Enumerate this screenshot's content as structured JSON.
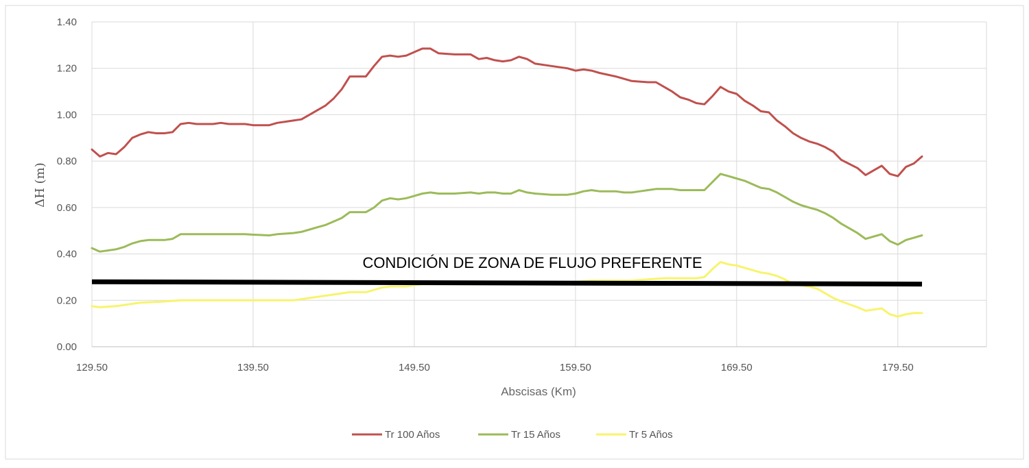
{
  "chart_data": {
    "type": "line",
    "title": "",
    "xlabel": "Abscisas (Km)",
    "ylabel": "ΔH (m)",
    "xlim": [
      129.5,
      185.0
    ],
    "ylim": [
      0.0,
      1.4
    ],
    "grid": true,
    "legend_position": "bottom",
    "x_ticks": [
      {
        "value": 129.5,
        "label": "129.50"
      },
      {
        "value": 139.5,
        "label": "139.50"
      },
      {
        "value": 149.5,
        "label": "149.50"
      },
      {
        "value": 159.5,
        "label": "159.50"
      },
      {
        "value": 169.5,
        "label": "169.50"
      },
      {
        "value": 179.5,
        "label": "179.50"
      }
    ],
    "y_ticks": [
      {
        "value": 0.0,
        "label": "0.00"
      },
      {
        "value": 0.2,
        "label": "0.20"
      },
      {
        "value": 0.4,
        "label": "0.40"
      },
      {
        "value": 0.6,
        "label": "0.60"
      },
      {
        "value": 0.8,
        "label": "0.80"
      },
      {
        "value": 1.0,
        "label": "1.00"
      },
      {
        "value": 1.2,
        "label": "1.20"
      },
      {
        "value": 1.4,
        "label": "1.40"
      }
    ],
    "series": [
      {
        "name": "Tr 100 Años",
        "color": "#c0504d",
        "points": [
          [
            129.5,
            0.85
          ],
          [
            130.0,
            0.82
          ],
          [
            130.5,
            0.835
          ],
          [
            131.0,
            0.83
          ],
          [
            131.5,
            0.86
          ],
          [
            132.0,
            0.9
          ],
          [
            132.5,
            0.915
          ],
          [
            133.0,
            0.925
          ],
          [
            133.5,
            0.92
          ],
          [
            134.0,
            0.92
          ],
          [
            134.5,
            0.925
          ],
          [
            135.0,
            0.96
          ],
          [
            135.5,
            0.965
          ],
          [
            136.0,
            0.96
          ],
          [
            137.0,
            0.96
          ],
          [
            137.5,
            0.965
          ],
          [
            138.0,
            0.96
          ],
          [
            139.0,
            0.96
          ],
          [
            139.5,
            0.955
          ],
          [
            140.5,
            0.955
          ],
          [
            141.0,
            0.965
          ],
          [
            141.5,
            0.97
          ],
          [
            142.0,
            0.975
          ],
          [
            142.5,
            0.98
          ],
          [
            143.0,
            1.0
          ],
          [
            143.5,
            1.02
          ],
          [
            144.0,
            1.04
          ],
          [
            144.5,
            1.07
          ],
          [
            145.0,
            1.11
          ],
          [
            145.5,
            1.165
          ],
          [
            146.5,
            1.165
          ],
          [
            147.0,
            1.21
          ],
          [
            147.5,
            1.25
          ],
          [
            148.0,
            1.255
          ],
          [
            148.5,
            1.25
          ],
          [
            149.0,
            1.255
          ],
          [
            149.5,
            1.27
          ],
          [
            150.0,
            1.285
          ],
          [
            150.5,
            1.285
          ],
          [
            151.0,
            1.265
          ],
          [
            152.0,
            1.26
          ],
          [
            153.0,
            1.26
          ],
          [
            153.5,
            1.24
          ],
          [
            154.0,
            1.245
          ],
          [
            154.5,
            1.235
          ],
          [
            155.0,
            1.23
          ],
          [
            155.5,
            1.235
          ],
          [
            156.0,
            1.25
          ],
          [
            156.5,
            1.24
          ],
          [
            157.0,
            1.22
          ],
          [
            158.0,
            1.21
          ],
          [
            159.0,
            1.2
          ],
          [
            159.5,
            1.19
          ],
          [
            160.0,
            1.195
          ],
          [
            160.5,
            1.19
          ],
          [
            161.0,
            1.18
          ],
          [
            162.0,
            1.165
          ],
          [
            163.0,
            1.145
          ],
          [
            164.0,
            1.14
          ],
          [
            164.5,
            1.14
          ],
          [
            165.0,
            1.12
          ],
          [
            165.5,
            1.1
          ],
          [
            166.0,
            1.075
          ],
          [
            166.5,
            1.065
          ],
          [
            167.0,
            1.05
          ],
          [
            167.5,
            1.045
          ],
          [
            168.0,
            1.08
          ],
          [
            168.5,
            1.12
          ],
          [
            169.0,
            1.1
          ],
          [
            169.5,
            1.09
          ],
          [
            170.0,
            1.06
          ],
          [
            170.5,
            1.04
          ],
          [
            171.0,
            1.015
          ],
          [
            171.5,
            1.01
          ],
          [
            172.0,
            0.975
          ],
          [
            172.5,
            0.95
          ],
          [
            173.0,
            0.92
          ],
          [
            173.5,
            0.9
          ],
          [
            174.0,
            0.885
          ],
          [
            174.5,
            0.875
          ],
          [
            175.0,
            0.86
          ],
          [
            175.5,
            0.84
          ],
          [
            176.0,
            0.805
          ],
          [
            177.0,
            0.77
          ],
          [
            177.5,
            0.74
          ],
          [
            178.0,
            0.76
          ],
          [
            178.5,
            0.78
          ],
          [
            179.0,
            0.745
          ],
          [
            179.5,
            0.735
          ],
          [
            180.0,
            0.775
          ],
          [
            180.5,
            0.79
          ],
          [
            181.0,
            0.82
          ]
        ]
      },
      {
        "name": "Tr 15 Años",
        "color": "#9bbb59",
        "points": [
          [
            129.5,
            0.425
          ],
          [
            130.0,
            0.41
          ],
          [
            130.5,
            0.415
          ],
          [
            131.0,
            0.42
          ],
          [
            131.5,
            0.43
          ],
          [
            132.0,
            0.445
          ],
          [
            132.5,
            0.455
          ],
          [
            133.0,
            0.46
          ],
          [
            133.5,
            0.46
          ],
          [
            134.0,
            0.46
          ],
          [
            134.5,
            0.465
          ],
          [
            135.0,
            0.485
          ],
          [
            136.0,
            0.485
          ],
          [
            137.0,
            0.485
          ],
          [
            138.0,
            0.485
          ],
          [
            139.0,
            0.485
          ],
          [
            139.5,
            0.483
          ],
          [
            140.5,
            0.48
          ],
          [
            141.0,
            0.485
          ],
          [
            142.0,
            0.49
          ],
          [
            142.5,
            0.495
          ],
          [
            143.0,
            0.505
          ],
          [
            143.5,
            0.515
          ],
          [
            144.0,
            0.525
          ],
          [
            144.5,
            0.54
          ],
          [
            145.0,
            0.555
          ],
          [
            145.5,
            0.58
          ],
          [
            146.5,
            0.58
          ],
          [
            147.0,
            0.6
          ],
          [
            147.5,
            0.63
          ],
          [
            148.0,
            0.64
          ],
          [
            148.5,
            0.635
          ],
          [
            149.0,
            0.64
          ],
          [
            149.5,
            0.65
          ],
          [
            150.0,
            0.66
          ],
          [
            150.5,
            0.665
          ],
          [
            151.0,
            0.66
          ],
          [
            152.0,
            0.66
          ],
          [
            153.0,
            0.665
          ],
          [
            153.5,
            0.66
          ],
          [
            154.0,
            0.665
          ],
          [
            154.5,
            0.665
          ],
          [
            155.0,
            0.66
          ],
          [
            155.5,
            0.66
          ],
          [
            156.0,
            0.675
          ],
          [
            156.5,
            0.665
          ],
          [
            157.0,
            0.66
          ],
          [
            158.0,
            0.655
          ],
          [
            159.0,
            0.655
          ],
          [
            159.5,
            0.66
          ],
          [
            160.0,
            0.67
          ],
          [
            160.5,
            0.675
          ],
          [
            161.0,
            0.67
          ],
          [
            162.0,
            0.67
          ],
          [
            162.5,
            0.665
          ],
          [
            163.0,
            0.665
          ],
          [
            163.5,
            0.67
          ],
          [
            164.0,
            0.675
          ],
          [
            164.5,
            0.68
          ],
          [
            165.0,
            0.68
          ],
          [
            165.5,
            0.68
          ],
          [
            166.0,
            0.675
          ],
          [
            167.0,
            0.675
          ],
          [
            167.5,
            0.675
          ],
          [
            168.0,
            0.71
          ],
          [
            168.5,
            0.745
          ],
          [
            169.0,
            0.735
          ],
          [
            169.5,
            0.725
          ],
          [
            170.0,
            0.715
          ],
          [
            170.5,
            0.7
          ],
          [
            171.0,
            0.685
          ],
          [
            171.5,
            0.68
          ],
          [
            172.0,
            0.665
          ],
          [
            172.5,
            0.645
          ],
          [
            173.0,
            0.625
          ],
          [
            173.5,
            0.61
          ],
          [
            174.0,
            0.6
          ],
          [
            174.5,
            0.59
          ],
          [
            175.0,
            0.575
          ],
          [
            175.5,
            0.555
          ],
          [
            176.0,
            0.53
          ],
          [
            177.0,
            0.49
          ],
          [
            177.5,
            0.465
          ],
          [
            178.0,
            0.475
          ],
          [
            178.5,
            0.485
          ],
          [
            179.0,
            0.455
          ],
          [
            179.5,
            0.44
          ],
          [
            180.0,
            0.46
          ],
          [
            180.5,
            0.47
          ],
          [
            181.0,
            0.48
          ]
        ]
      },
      {
        "name": "Tr 5 Años",
        "color": "#f7f46c",
        "points": [
          [
            129.5,
            0.175
          ],
          [
            130.0,
            0.17
          ],
          [
            131.0,
            0.175
          ],
          [
            132.0,
            0.185
          ],
          [
            132.5,
            0.19
          ],
          [
            134.0,
            0.195
          ],
          [
            135.0,
            0.2
          ],
          [
            136.0,
            0.2
          ],
          [
            137.0,
            0.2
          ],
          [
            138.0,
            0.2
          ],
          [
            139.0,
            0.2
          ],
          [
            139.5,
            0.2
          ],
          [
            140.5,
            0.2
          ],
          [
            141.0,
            0.2
          ],
          [
            142.0,
            0.2
          ],
          [
            142.5,
            0.205
          ],
          [
            143.0,
            0.21
          ],
          [
            143.5,
            0.215
          ],
          [
            144.0,
            0.22
          ],
          [
            145.0,
            0.23
          ],
          [
            145.5,
            0.235
          ],
          [
            146.5,
            0.235
          ],
          [
            147.0,
            0.245
          ],
          [
            147.5,
            0.255
          ],
          [
            148.0,
            0.26
          ],
          [
            149.0,
            0.26
          ],
          [
            149.5,
            0.265
          ],
          [
            150.0,
            0.27
          ],
          [
            152.0,
            0.27
          ],
          [
            154.0,
            0.27
          ],
          [
            156.0,
            0.275
          ],
          [
            158.0,
            0.275
          ],
          [
            159.5,
            0.28
          ],
          [
            160.5,
            0.285
          ],
          [
            162.0,
            0.285
          ],
          [
            163.0,
            0.285
          ],
          [
            164.0,
            0.29
          ],
          [
            165.0,
            0.295
          ],
          [
            166.0,
            0.295
          ],
          [
            167.0,
            0.295
          ],
          [
            167.5,
            0.3
          ],
          [
            168.0,
            0.335
          ],
          [
            168.5,
            0.365
          ],
          [
            169.0,
            0.355
          ],
          [
            169.5,
            0.35
          ],
          [
            170.0,
            0.34
          ],
          [
            170.5,
            0.33
          ],
          [
            171.0,
            0.32
          ],
          [
            171.5,
            0.315
          ],
          [
            172.0,
            0.305
          ],
          [
            172.5,
            0.29
          ],
          [
            173.0,
            0.27
          ],
          [
            174.0,
            0.26
          ],
          [
            174.5,
            0.25
          ],
          [
            175.0,
            0.23
          ],
          [
            175.5,
            0.21
          ],
          [
            176.0,
            0.195
          ],
          [
            177.0,
            0.17
          ],
          [
            177.5,
            0.155
          ],
          [
            178.0,
            0.16
          ],
          [
            178.5,
            0.165
          ],
          [
            179.0,
            0.14
          ],
          [
            179.5,
            0.13
          ],
          [
            180.0,
            0.14
          ],
          [
            180.5,
            0.145
          ],
          [
            181.0,
            0.145
          ]
        ]
      }
    ],
    "threshold": {
      "label": "CONDICIÓN DE ZONA DE FLUJO PREFERENTE",
      "start": [
        129.5,
        0.28
      ],
      "end": [
        181.0,
        0.27
      ],
      "color": "#000000"
    }
  }
}
